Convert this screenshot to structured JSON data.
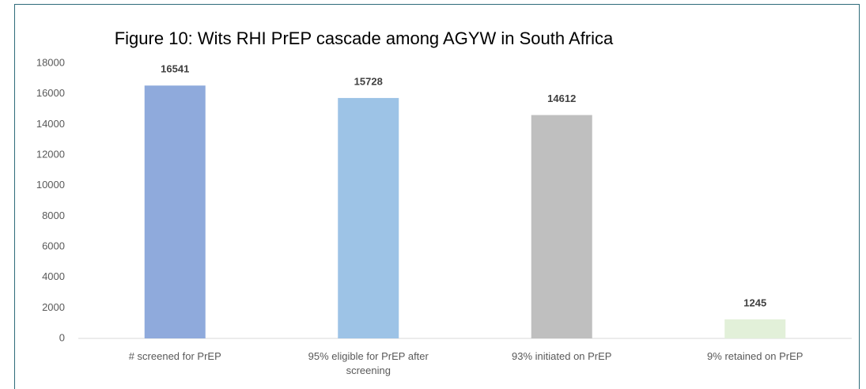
{
  "chart_data": {
    "type": "bar",
    "title": "Figure 10: Wits RHI PrEP cascade among AGYW in South Africa",
    "categories": [
      "# screened for PrEP",
      "95% eligible for PrEP after screening",
      "93% initiated on PrEP",
      "9% retained on PrEP"
    ],
    "values": [
      16541,
      15728,
      14612,
      1245
    ],
    "colors": [
      "#8faadc",
      "#9dc3e6",
      "#bfbfbf",
      "#e2f0d9"
    ],
    "ylim": [
      0,
      18000
    ],
    "yticks": [
      0,
      2000,
      4000,
      6000,
      8000,
      10000,
      12000,
      14000,
      16000,
      18000
    ],
    "grid": false
  }
}
